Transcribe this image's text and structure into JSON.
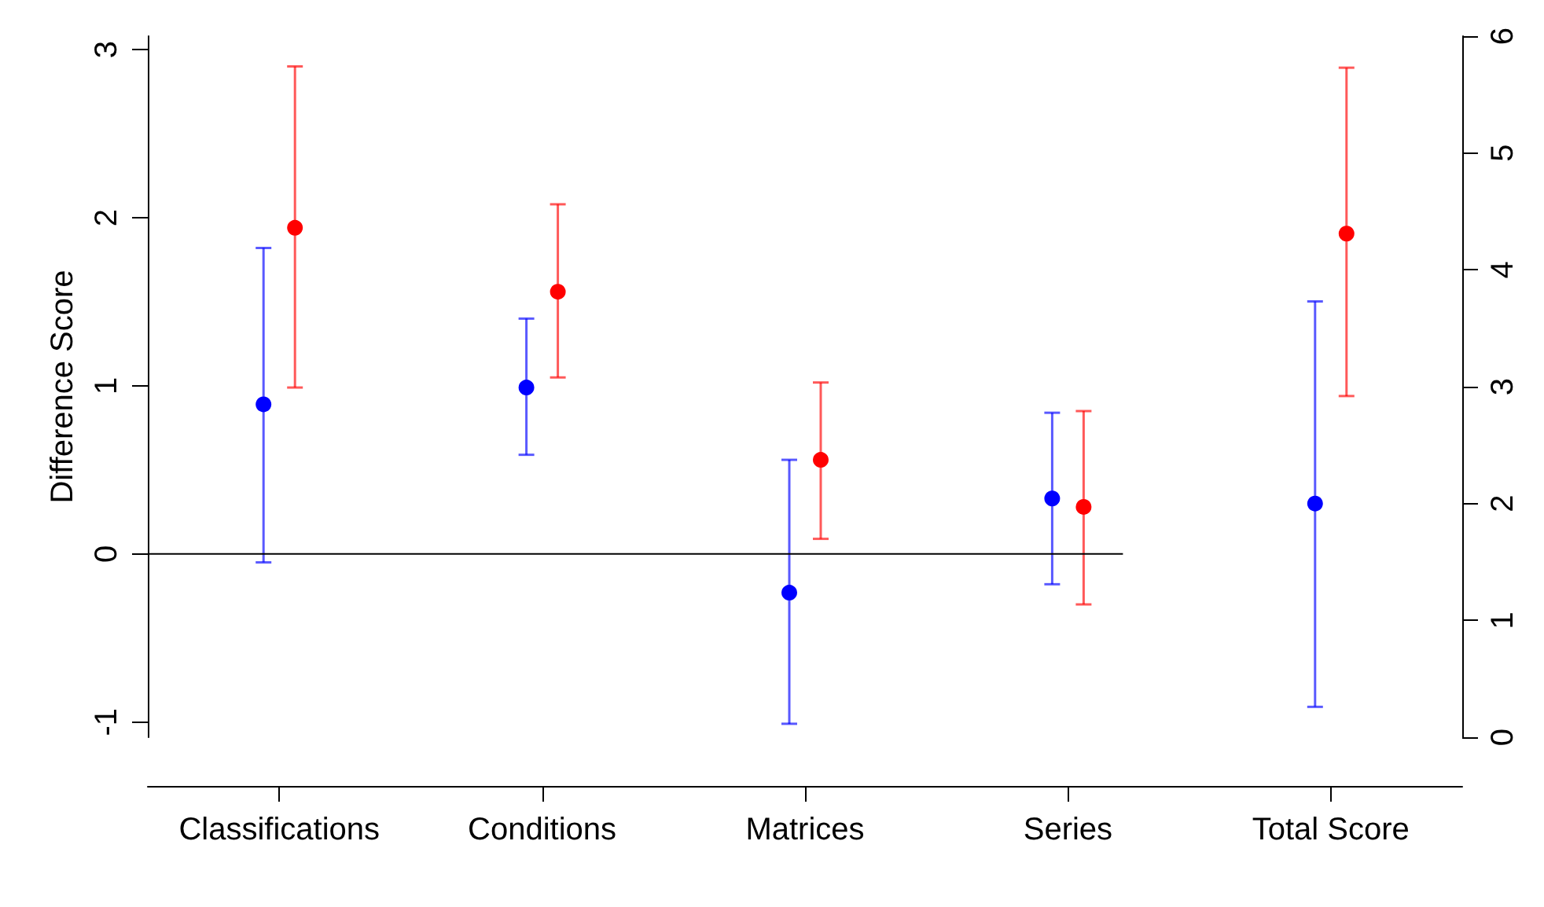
{
  "chart_data": {
    "type": "scatter",
    "ylabel": "Difference Score",
    "categories": [
      "Classifications",
      "Conditions",
      "Matrices",
      "Series",
      "Total Score"
    ],
    "ylim": [
      -1.09,
      3.08
    ],
    "yticks": [
      -1,
      0,
      1,
      2,
      3
    ],
    "y2lim": [
      0,
      6
    ],
    "y2ticks": [
      0,
      1,
      2,
      3,
      4,
      5,
      6
    ],
    "marker": "circle",
    "grid": false,
    "ref_lines": [
      {
        "axis": "y",
        "value": 0,
        "color": "#000000"
      }
    ],
    "series": [
      {
        "color": "#0000ff",
        "values": [
          0.89,
          0.99,
          -0.23,
          0.33,
          null
        ],
        "errors": [
          [
            -0.05,
            1.82
          ],
          [
            0.59,
            1.4
          ],
          [
            -1.01,
            0.56
          ],
          [
            -0.18,
            0.84
          ],
          null
        ]
      },
      {
        "color": "#ff0000",
        "values": [
          1.94,
          1.56,
          0.56,
          0.28,
          null
        ],
        "errors": [
          [
            0.99,
            2.9
          ],
          [
            1.05,
            2.08
          ],
          [
            0.09,
            1.02
          ],
          [
            -0.3,
            0.85
          ],
          null
        ]
      },
      {
        "color": "#0000ff",
        "axis": "y2",
        "values": [
          null,
          null,
          null,
          null,
          2.0
        ],
        "errors": [
          null,
          null,
          null,
          null,
          [
            0.26,
            3.73
          ]
        ]
      },
      {
        "color": "#ff0000",
        "axis": "y2",
        "values": [
          null,
          null,
          null,
          null,
          4.31
        ],
        "errors": [
          null,
          null,
          null,
          null,
          [
            2.92,
            5.73
          ]
        ]
      }
    ]
  }
}
